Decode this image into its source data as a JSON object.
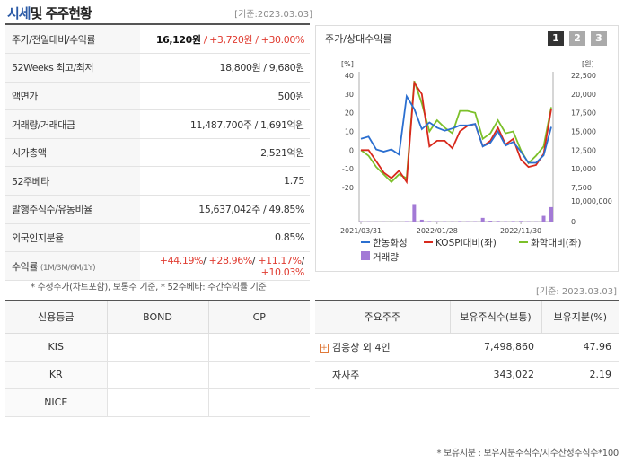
{
  "header": {
    "title_part1": "시세",
    "title_part2": " 및 주주현황",
    "base_date": "[기준:2023.03.03]"
  },
  "info_rows": [
    {
      "key": "주가/전일대비/수익률",
      "v1": "16,120원",
      "v2": " / +3,720원",
      "v3": " / +30.00%"
    },
    {
      "key": "52Weeks 최고/최저",
      "value": "18,800원 / 9,680원"
    },
    {
      "key": "액면가",
      "value": "500원"
    },
    {
      "key": "거래량/거래대금",
      "value": "11,487,700주 / 1,691억원"
    },
    {
      "key": "시가총액",
      "value": "2,521억원"
    },
    {
      "key": "52주베타",
      "value": "1.75"
    },
    {
      "key": "발행주식수/유동비율",
      "value": "15,637,042주 / 49.85%"
    },
    {
      "key": "외국인지분율",
      "value": "0.85%"
    },
    {
      "key": "수익률",
      "key_small": "(1M/3M/6M/1Y)",
      "r1": "+44.19%",
      "r2": "+28.96%",
      "r3": "+11.17%",
      "r4": "+10.03%"
    }
  ],
  "note1": "* 수정주가(차트포함), 보통주 기준, * 52주베타: 주간수익률 기준",
  "chart_panel": {
    "title": "주가/상대수익률",
    "tabs": [
      "1",
      "2",
      "3"
    ],
    "active_tab": "1",
    "left_unit": "[%]",
    "right_unit": "[원]",
    "legend": {
      "s1": "한농화성",
      "s2": "KOSPI대비(좌)",
      "s3": "화학대비(좌)",
      "s4": "거래량"
    },
    "colors": {
      "price": "#2b6fd0",
      "kospi": "#d8291c",
      "chem": "#7cc02a",
      "volume": "#a37ad6"
    }
  },
  "chart_data": {
    "type": "line",
    "x_tick_labels": [
      "2021/03/31",
      "2022/01/28",
      "2022/11/30"
    ],
    "y_left_ticks": [
      "40",
      "30",
      "20",
      "10",
      "0",
      "-10",
      "-20"
    ],
    "y_left_range": [
      -20,
      40
    ],
    "y_right_ticks": [
      "22,500",
      "20,000",
      "17,500",
      "15,000",
      "12,500",
      "10,000",
      "7,500"
    ],
    "y_right_range": [
      7500,
      22500
    ],
    "volume_ticks": [
      "10,000,000",
      "0"
    ],
    "volume_range": [
      0,
      10000000
    ],
    "series": [
      {
        "name": "한농화성",
        "axis": "right",
        "values": [
          14000,
          14300,
          12600,
          12300,
          12600,
          11900,
          19700,
          18000,
          15300,
          16200,
          15500,
          15100,
          15400,
          15800,
          15800,
          16000,
          13000,
          13500,
          15000,
          13100,
          13600,
          12300,
          10800,
          10800,
          11800,
          15600
        ]
      },
      {
        "name": "KOSPI대비(좌)",
        "axis": "left",
        "values": [
          0,
          0,
          -6,
          -12,
          -15,
          -11,
          -17,
          36,
          30,
          2,
          5,
          5,
          1,
          10,
          13,
          14,
          2,
          5,
          12,
          3,
          6,
          -5,
          -9,
          -8,
          -2,
          22
        ]
      },
      {
        "name": "화학대비(좌)",
        "axis": "left",
        "values": [
          0,
          -3,
          -9,
          -13,
          -17,
          -13,
          -15,
          37,
          25,
          10,
          16,
          12,
          9,
          21,
          21,
          20,
          6,
          9,
          16,
          9,
          10,
          0,
          -7,
          -3,
          2,
          23
        ]
      },
      {
        "name": "거래량",
        "axis": "volume",
        "values": [
          150000,
          100000,
          80000,
          60000,
          60000,
          60000,
          200000,
          8500000,
          900000,
          250000,
          150000,
          150000,
          120000,
          250000,
          150000,
          150000,
          1800000,
          400000,
          300000,
          150000,
          250000,
          300000,
          150000,
          100000,
          2800000,
          7000000
        ]
      }
    ]
  },
  "chart_base_date": "[기준: 2023.03.03]",
  "grade_table": {
    "headers": [
      "신용등급",
      "BOND",
      "CP"
    ],
    "rows": [
      "KIS",
      "KR",
      "NICE"
    ]
  },
  "holders_table": {
    "headers": [
      "주요주주",
      "보유주식수(보통)",
      "보유지분(%)"
    ],
    "rows": [
      {
        "name": "김응상 외 4인",
        "shares": "7,498,860",
        "pct": "47.96",
        "expandable": true
      },
      {
        "name": "자사주",
        "shares": "343,022",
        "pct": "2.19",
        "expandable": false
      }
    ]
  },
  "note2": "* 보유지분 : 보유지분주식수/지수산정주식수*100"
}
